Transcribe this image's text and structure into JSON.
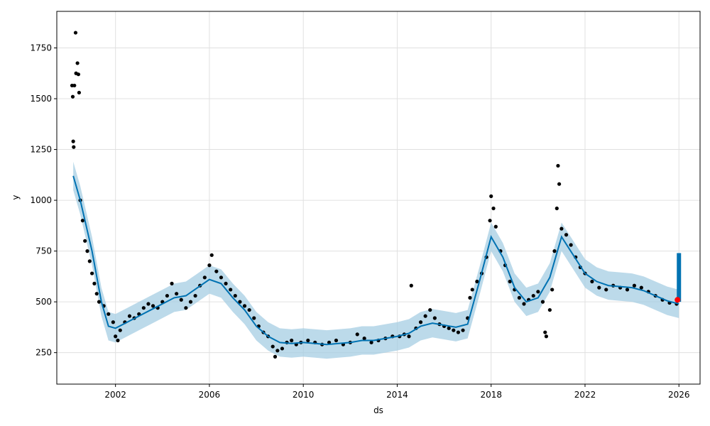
{
  "chart_data": {
    "type": "scatter",
    "title": "",
    "xlabel": "ds",
    "ylabel": "y",
    "xlim": [
      1999.5,
      2026.9
    ],
    "ylim": [
      95,
      1930
    ],
    "grid": true,
    "x_ticks": [
      2002,
      2006,
      2010,
      2014,
      2018,
      2022,
      2026
    ],
    "y_ticks": [
      250,
      500,
      750,
      1000,
      1250,
      1500,
      1750
    ],
    "colors": {
      "observed": "#000000",
      "forecast": "#0072B2",
      "interval": "#A6CEE3",
      "latest": "#ff0000"
    },
    "series": [
      {
        "kind": "observed",
        "points": [
          [
            2000.15,
            1565
          ],
          [
            2000.18,
            1510
          ],
          [
            2000.2,
            1290
          ],
          [
            2000.22,
            1262
          ],
          [
            2000.25,
            1565
          ],
          [
            2000.3,
            1825
          ],
          [
            2000.32,
            1625
          ],
          [
            2000.38,
            1675
          ],
          [
            2000.42,
            1620
          ],
          [
            2000.45,
            1530
          ],
          [
            2000.5,
            1000
          ],
          [
            2000.6,
            900
          ],
          [
            2000.7,
            800
          ],
          [
            2000.8,
            750
          ],
          [
            2000.9,
            700
          ],
          [
            2001.0,
            640
          ],
          [
            2001.1,
            590
          ],
          [
            2001.2,
            540
          ],
          [
            2001.3,
            500
          ],
          [
            2001.5,
            480
          ],
          [
            2001.7,
            440
          ],
          [
            2001.9,
            400
          ],
          [
            2002.0,
            330
          ],
          [
            2002.1,
            310
          ],
          [
            2002.2,
            360
          ],
          [
            2002.4,
            400
          ],
          [
            2002.6,
            430
          ],
          [
            2002.8,
            420
          ],
          [
            2003.0,
            440
          ],
          [
            2003.2,
            470
          ],
          [
            2003.4,
            490
          ],
          [
            2003.6,
            480
          ],
          [
            2003.8,
            470
          ],
          [
            2004.0,
            500
          ],
          [
            2004.2,
            530
          ],
          [
            2004.4,
            590
          ],
          [
            2004.6,
            540
          ],
          [
            2004.8,
            510
          ],
          [
            2005.0,
            470
          ],
          [
            2005.2,
            500
          ],
          [
            2005.4,
            530
          ],
          [
            2005.6,
            580
          ],
          [
            2005.8,
            620
          ],
          [
            2006.0,
            680
          ],
          [
            2006.1,
            730
          ],
          [
            2006.3,
            650
          ],
          [
            2006.5,
            620
          ],
          [
            2006.7,
            590
          ],
          [
            2006.9,
            560
          ],
          [
            2007.1,
            530
          ],
          [
            2007.3,
            500
          ],
          [
            2007.5,
            480
          ],
          [
            2007.7,
            460
          ],
          [
            2007.9,
            420
          ],
          [
            2008.1,
            380
          ],
          [
            2008.3,
            350
          ],
          [
            2008.5,
            330
          ],
          [
            2008.7,
            280
          ],
          [
            2008.8,
            230
          ],
          [
            2008.9,
            260
          ],
          [
            2009.1,
            270
          ],
          [
            2009.3,
            300
          ],
          [
            2009.5,
            310
          ],
          [
            2009.7,
            290
          ],
          [
            2009.9,
            300
          ],
          [
            2010.2,
            310
          ],
          [
            2010.5,
            300
          ],
          [
            2010.8,
            290
          ],
          [
            2011.1,
            300
          ],
          [
            2011.4,
            310
          ],
          [
            2011.7,
            290
          ],
          [
            2012.0,
            300
          ],
          [
            2012.3,
            340
          ],
          [
            2012.6,
            320
          ],
          [
            2012.9,
            300
          ],
          [
            2013.2,
            310
          ],
          [
            2013.5,
            320
          ],
          [
            2013.8,
            330
          ],
          [
            2014.1,
            330
          ],
          [
            2014.3,
            340
          ],
          [
            2014.5,
            330
          ],
          [
            2014.6,
            580
          ],
          [
            2014.8,
            370
          ],
          [
            2015.0,
            400
          ],
          [
            2015.2,
            430
          ],
          [
            2015.4,
            460
          ],
          [
            2015.6,
            420
          ],
          [
            2015.8,
            390
          ],
          [
            2016.0,
            380
          ],
          [
            2016.2,
            370
          ],
          [
            2016.4,
            360
          ],
          [
            2016.6,
            350
          ],
          [
            2016.8,
            360
          ],
          [
            2017.0,
            420
          ],
          [
            2017.1,
            520
          ],
          [
            2017.2,
            560
          ],
          [
            2017.4,
            600
          ],
          [
            2017.6,
            640
          ],
          [
            2017.8,
            720
          ],
          [
            2017.95,
            900
          ],
          [
            2018.0,
            1020
          ],
          [
            2018.1,
            960
          ],
          [
            2018.2,
            870
          ],
          [
            2018.4,
            750
          ],
          [
            2018.6,
            680
          ],
          [
            2018.8,
            600
          ],
          [
            2019.0,
            560
          ],
          [
            2019.2,
            520
          ],
          [
            2019.4,
            490
          ],
          [
            2019.6,
            510
          ],
          [
            2019.8,
            530
          ],
          [
            2020.0,
            550
          ],
          [
            2020.2,
            500
          ],
          [
            2020.3,
            350
          ],
          [
            2020.35,
            330
          ],
          [
            2020.5,
            460
          ],
          [
            2020.6,
            560
          ],
          [
            2020.7,
            750
          ],
          [
            2020.8,
            960
          ],
          [
            2020.85,
            1170
          ],
          [
            2020.9,
            1080
          ],
          [
            2021.0,
            860
          ],
          [
            2021.2,
            830
          ],
          [
            2021.4,
            780
          ],
          [
            2021.6,
            720
          ],
          [
            2021.8,
            670
          ],
          [
            2022.0,
            640
          ],
          [
            2022.3,
            600
          ],
          [
            2022.6,
            570
          ],
          [
            2022.9,
            560
          ],
          [
            2023.2,
            580
          ],
          [
            2023.5,
            570
          ],
          [
            2023.8,
            560
          ],
          [
            2024.1,
            580
          ],
          [
            2024.4,
            570
          ],
          [
            2024.7,
            550
          ],
          [
            2025.0,
            530
          ],
          [
            2025.3,
            510
          ],
          [
            2025.6,
            495
          ],
          [
            2025.9,
            490
          ]
        ]
      },
      {
        "kind": "forecast",
        "points": [
          [
            2000.2,
            1120
          ],
          [
            2000.5,
            1000
          ],
          [
            2001.0,
            750
          ],
          [
            2001.4,
            500
          ],
          [
            2001.7,
            380
          ],
          [
            2002.0,
            370
          ],
          [
            2002.5,
            400
          ],
          [
            2003.0,
            430
          ],
          [
            2003.5,
            460
          ],
          [
            2004.0,
            490
          ],
          [
            2004.5,
            520
          ],
          [
            2005.0,
            530
          ],
          [
            2005.5,
            570
          ],
          [
            2006.0,
            610
          ],
          [
            2006.5,
            590
          ],
          [
            2007.0,
            520
          ],
          [
            2007.5,
            460
          ],
          [
            2008.0,
            380
          ],
          [
            2008.5,
            330
          ],
          [
            2009.0,
            300
          ],
          [
            2009.5,
            295
          ],
          [
            2010.0,
            300
          ],
          [
            2010.5,
            295
          ],
          [
            2011.0,
            290
          ],
          [
            2011.5,
            295
          ],
          [
            2012.0,
            300
          ],
          [
            2012.5,
            310
          ],
          [
            2013.0,
            310
          ],
          [
            2013.5,
            320
          ],
          [
            2014.0,
            330
          ],
          [
            2014.5,
            345
          ],
          [
            2015.0,
            380
          ],
          [
            2015.5,
            395
          ],
          [
            2016.0,
            385
          ],
          [
            2016.5,
            375
          ],
          [
            2017.0,
            390
          ],
          [
            2017.5,
            600
          ],
          [
            2018.0,
            820
          ],
          [
            2018.5,
            720
          ],
          [
            2019.0,
            570
          ],
          [
            2019.5,
            500
          ],
          [
            2020.0,
            520
          ],
          [
            2020.5,
            620
          ],
          [
            2021.0,
            820
          ],
          [
            2021.5,
            730
          ],
          [
            2022.0,
            640
          ],
          [
            2022.5,
            600
          ],
          [
            2023.0,
            580
          ],
          [
            2023.5,
            575
          ],
          [
            2024.0,
            570
          ],
          [
            2024.5,
            555
          ],
          [
            2025.0,
            530
          ],
          [
            2025.5,
            505
          ],
          [
            2026.0,
            490
          ]
        ]
      },
      {
        "kind": "forecast_interval",
        "upper": [
          [
            2000.2,
            1190
          ],
          [
            2000.5,
            1070
          ],
          [
            2001.0,
            820
          ],
          [
            2001.4,
            570
          ],
          [
            2001.7,
            450
          ],
          [
            2002.0,
            440
          ],
          [
            2002.5,
            470
          ],
          [
            2003.0,
            500
          ],
          [
            2003.5,
            530
          ],
          [
            2004.0,
            560
          ],
          [
            2004.5,
            590
          ],
          [
            2005.0,
            600
          ],
          [
            2005.5,
            640
          ],
          [
            2006.0,
            680
          ],
          [
            2006.5,
            660
          ],
          [
            2007.0,
            590
          ],
          [
            2007.5,
            530
          ],
          [
            2008.0,
            450
          ],
          [
            2008.5,
            400
          ],
          [
            2009.0,
            370
          ],
          [
            2009.5,
            365
          ],
          [
            2010.0,
            370
          ],
          [
            2010.5,
            365
          ],
          [
            2011.0,
            360
          ],
          [
            2011.5,
            365
          ],
          [
            2012.0,
            370
          ],
          [
            2012.5,
            380
          ],
          [
            2013.0,
            380
          ],
          [
            2013.5,
            390
          ],
          [
            2014.0,
            400
          ],
          [
            2014.5,
            415
          ],
          [
            2015.0,
            450
          ],
          [
            2015.5,
            465
          ],
          [
            2016.0,
            455
          ],
          [
            2016.5,
            445
          ],
          [
            2017.0,
            460
          ],
          [
            2017.5,
            670
          ],
          [
            2018.0,
            890
          ],
          [
            2018.5,
            790
          ],
          [
            2019.0,
            640
          ],
          [
            2019.5,
            570
          ],
          [
            2020.0,
            590
          ],
          [
            2020.5,
            690
          ],
          [
            2021.0,
            890
          ],
          [
            2021.5,
            800
          ],
          [
            2022.0,
            710
          ],
          [
            2022.5,
            670
          ],
          [
            2023.0,
            650
          ],
          [
            2023.5,
            645
          ],
          [
            2024.0,
            640
          ],
          [
            2024.5,
            625
          ],
          [
            2025.0,
            600
          ],
          [
            2025.5,
            575
          ],
          [
            2026.0,
            560
          ]
        ],
        "lower": [
          [
            2000.2,
            1050
          ],
          [
            2000.5,
            930
          ],
          [
            2001.0,
            680
          ],
          [
            2001.4,
            430
          ],
          [
            2001.7,
            310
          ],
          [
            2002.0,
            300
          ],
          [
            2002.5,
            330
          ],
          [
            2003.0,
            360
          ],
          [
            2003.5,
            390
          ],
          [
            2004.0,
            420
          ],
          [
            2004.5,
            450
          ],
          [
            2005.0,
            460
          ],
          [
            2005.5,
            500
          ],
          [
            2006.0,
            540
          ],
          [
            2006.5,
            520
          ],
          [
            2007.0,
            450
          ],
          [
            2007.5,
            390
          ],
          [
            2008.0,
            310
          ],
          [
            2008.5,
            260
          ],
          [
            2009.0,
            230
          ],
          [
            2009.5,
            225
          ],
          [
            2010.0,
            230
          ],
          [
            2010.5,
            225
          ],
          [
            2011.0,
            220
          ],
          [
            2011.5,
            225
          ],
          [
            2012.0,
            230
          ],
          [
            2012.5,
            240
          ],
          [
            2013.0,
            240
          ],
          [
            2013.5,
            250
          ],
          [
            2014.0,
            260
          ],
          [
            2014.5,
            275
          ],
          [
            2015.0,
            310
          ],
          [
            2015.5,
            325
          ],
          [
            2016.0,
            315
          ],
          [
            2016.5,
            305
          ],
          [
            2017.0,
            320
          ],
          [
            2017.5,
            530
          ],
          [
            2018.0,
            750
          ],
          [
            2018.5,
            650
          ],
          [
            2019.0,
            500
          ],
          [
            2019.5,
            430
          ],
          [
            2020.0,
            450
          ],
          [
            2020.5,
            550
          ],
          [
            2021.0,
            750
          ],
          [
            2021.5,
            660
          ],
          [
            2022.0,
            570
          ],
          [
            2022.5,
            530
          ],
          [
            2023.0,
            510
          ],
          [
            2023.5,
            505
          ],
          [
            2024.0,
            500
          ],
          [
            2024.5,
            485
          ],
          [
            2025.0,
            460
          ],
          [
            2025.5,
            435
          ],
          [
            2026.0,
            420
          ]
        ]
      }
    ],
    "forecast_spike": {
      "x": 2026.0,
      "from": 500,
      "to": 740
    },
    "latest_point": [
      2026.0,
      510
    ]
  }
}
